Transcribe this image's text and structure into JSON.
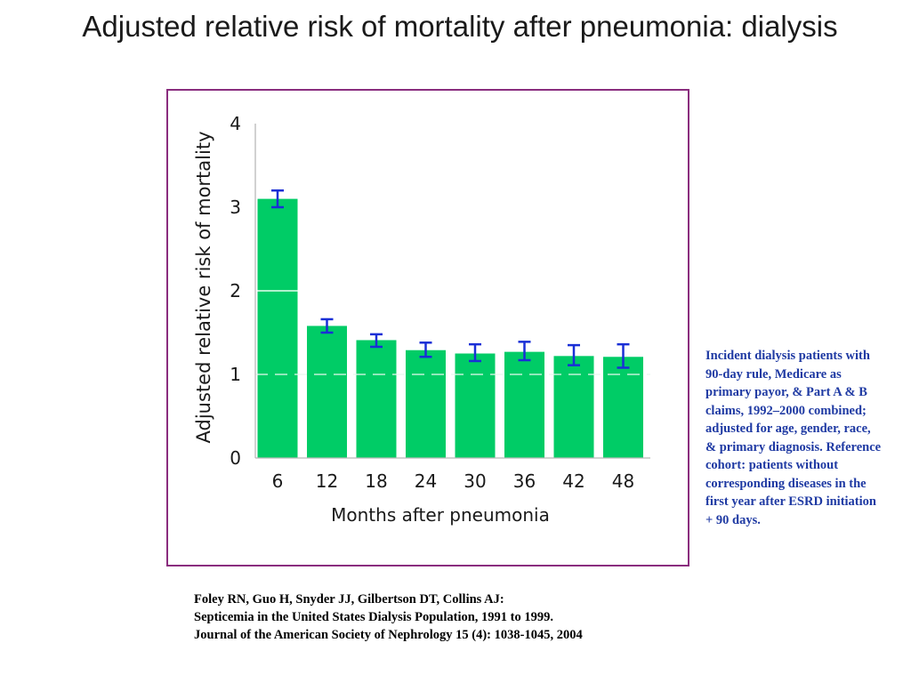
{
  "slide": {
    "title": "Adjusted relative risk of mortality after pneumonia: dialysis"
  },
  "chart_data": {
    "type": "bar",
    "categories": [
      "6",
      "12",
      "18",
      "24",
      "30",
      "36",
      "42",
      "48"
    ],
    "values": [
      3.1,
      1.58,
      1.41,
      1.29,
      1.25,
      1.27,
      1.22,
      1.21
    ],
    "error_low": [
      3.0,
      1.5,
      1.33,
      1.21,
      1.16,
      1.17,
      1.11,
      1.08
    ],
    "error_high": [
      3.2,
      1.66,
      1.48,
      1.38,
      1.36,
      1.39,
      1.35,
      1.36
    ],
    "xlabel": "Months after pneumonia",
    "ylabel": "Adjusted relative risk of mortality",
    "ylim": [
      0,
      4
    ],
    "yticks": [
      "0",
      "1",
      "2",
      "3",
      "4"
    ],
    "reference_line": 1,
    "grid": false,
    "bar_color": "#00cc66",
    "error_bar_color": "#1a2fd6",
    "frame_color": "#8a2d7e"
  },
  "note": {
    "text": "Incident dialysis patients with 90-day rule, Medicare as primary payor, & Part A & B claims, 1992–2000 combined; adjusted for age, gender, race, & primary diagnosis. Reference cohort: patients without corresponding diseases in the first year after ESRD initiation + 90 days."
  },
  "citation": {
    "line1": "Foley RN, Guo H, Snyder JJ, Gilbertson DT, Collins AJ:",
    "line2": "Septicemia in the United States Dialysis Population, 1991 to 1999.",
    "line3": "Journal of the American Society of Nephrology 15 (4): 1038-1045, 2004"
  }
}
